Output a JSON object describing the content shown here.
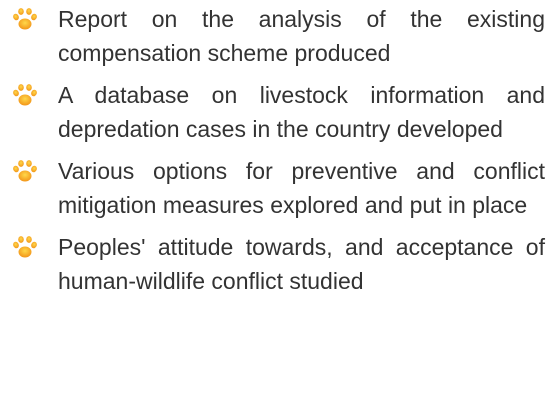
{
  "list": {
    "items": [
      "Report on the analysis of the existing compensation scheme produced",
      "A database on livestock information and depredation cases in the country developed",
      "Various options for preventive and conflict mitigation measures explored and put in place",
      "Peoples' attitude towards, and acceptance of human-wildlife conflict studied"
    ]
  }
}
